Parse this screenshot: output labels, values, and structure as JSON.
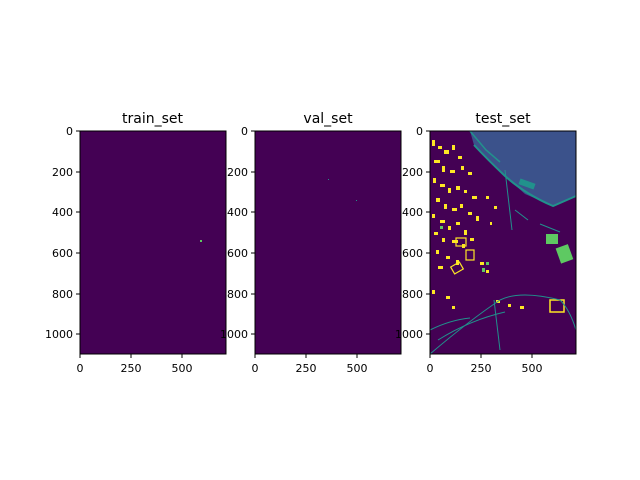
{
  "figure": {
    "background": "#ffffff",
    "colormap": [
      "#440154",
      "#3b528b",
      "#21918c",
      "#5ec962",
      "#fde725"
    ]
  },
  "panels": [
    {
      "title": "train_set",
      "xticks": [
        "0",
        "250",
        "500"
      ],
      "yticks": [
        "0",
        "200",
        "400",
        "600",
        "800",
        "1000"
      ]
    },
    {
      "title": "val_set",
      "xticks": [
        "0",
        "250",
        "500"
      ],
      "yticks": [
        "0",
        "200",
        "400",
        "600",
        "800",
        "1000"
      ]
    },
    {
      "title": "test_set",
      "xticks": [
        "0",
        "250",
        "500"
      ],
      "yticks": [
        "0",
        "200",
        "400",
        "600",
        "800",
        "1000"
      ]
    }
  ]
}
